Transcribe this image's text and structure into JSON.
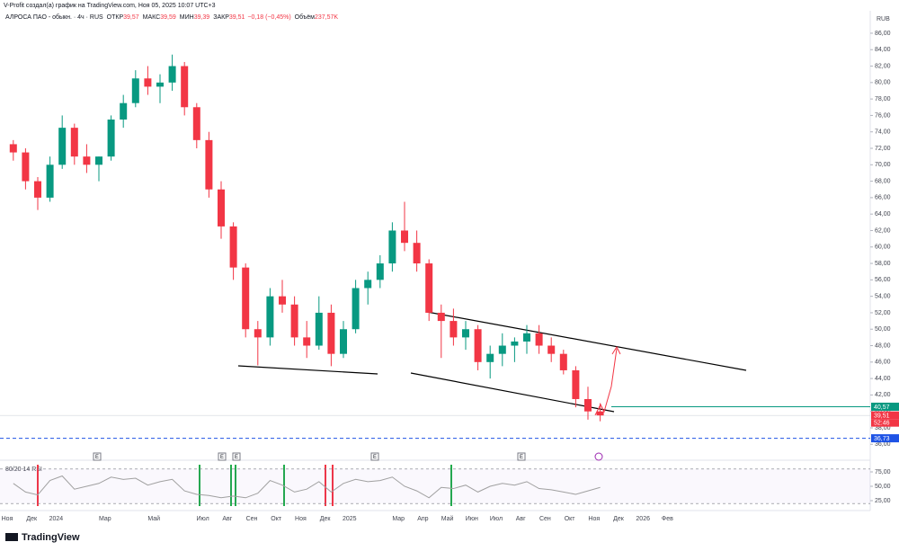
{
  "header": {
    "text": "V-Profit создал(а) график на TradingView.com, Ноя 05, 2025 10:07 UTC+3"
  },
  "footer": {
    "logo": "TradingView"
  },
  "chart_data": {
    "type": "candlestick",
    "legend": {
      "symbol": "АЛРОСА ПАО - обыкн. · 4ч · RUS",
      "open_label": "ОТКР",
      "open": "39,57",
      "high_label": "МАКС",
      "high": "39,59",
      "low_label": "МИН",
      "low": "39,39",
      "close_label": "ЗАКР",
      "close": "39,51",
      "change": "−0,18 (−0,45%)",
      "volume_label": "Объём",
      "volume": "237,57K"
    },
    "currency": "RUB",
    "categories": [
      "Ноя",
      null,
      "Дек",
      null,
      "2024",
      null,
      null,
      null,
      "Мар",
      null,
      null,
      null,
      "Май",
      null,
      null,
      null,
      "Июл",
      null,
      "Авг",
      null,
      "Сен",
      null,
      "Окт",
      null,
      "Ноя",
      null,
      "Дек",
      null,
      "2025",
      null,
      null,
      null,
      "Мар",
      null,
      "Апр",
      null,
      "Май",
      null,
      "Июн",
      null,
      "Июл",
      null,
      "Авг",
      null,
      "Сен",
      null,
      "Окт",
      null,
      "Ноя",
      null,
      "Дек",
      null,
      "2026",
      null,
      "Фев",
      null
    ],
    "open": [
      72.5,
      71.5,
      68,
      66,
      70,
      74.5,
      71,
      70,
      71,
      75.5,
      77.5,
      80.5,
      79.5,
      80,
      82,
      77,
      73,
      67,
      62.5,
      57.5,
      50,
      49,
      54,
      53,
      49,
      48,
      52,
      47,
      50,
      55,
      56,
      58,
      62,
      60.5,
      58,
      52,
      51,
      49,
      50,
      46,
      47,
      48,
      48.5,
      49.5,
      48,
      47,
      45,
      41.5,
      40,
      null,
      null,
      null,
      null,
      null,
      null,
      null
    ],
    "high": [
      73,
      72,
      68.5,
      71,
      76,
      75,
      72.5,
      71,
      76,
      78.5,
      81.5,
      82,
      81,
      83.4,
      82.5,
      77.5,
      74,
      68,
      63,
      58,
      51,
      55,
      56,
      54,
      51,
      54,
      53,
      51,
      56,
      57,
      59,
      63,
      65.5,
      62,
      58.5,
      53,
      52.5,
      51,
      50.5,
      48,
      49.5,
      49,
      50.5,
      50.5,
      49,
      47.5,
      45.5,
      43,
      41,
      null,
      null,
      null,
      null,
      null,
      null,
      null
    ],
    "low": [
      70.5,
      67,
      64.5,
      65.5,
      69.5,
      70,
      69,
      68,
      70.5,
      74.5,
      77,
      78.5,
      77.5,
      79,
      76,
      72,
      66,
      61,
      56,
      49,
      45.6,
      48,
      52,
      48,
      46.5,
      47.5,
      45.5,
      46.5,
      49.5,
      53,
      55,
      57,
      59.5,
      57,
      51,
      46.5,
      48,
      47.5,
      45,
      44,
      45.5,
      46,
      47,
      47,
      46,
      44.5,
      40.5,
      39,
      38.8,
      null,
      null,
      null,
      null,
      null,
      null,
      null
    ],
    "close": [
      71.5,
      68,
      66,
      70,
      74.5,
      71,
      70,
      71,
      75.5,
      77.5,
      80.5,
      79.5,
      80,
      82,
      77,
      73,
      67,
      62.5,
      57.5,
      50,
      49,
      54,
      53,
      49,
      48,
      52,
      47,
      50,
      55,
      56,
      58,
      62,
      60.5,
      58,
      52,
      51,
      49,
      50,
      46,
      47,
      48,
      48.5,
      49.5,
      48,
      47,
      45,
      41.5,
      40,
      39.51,
      null,
      null,
      null,
      null,
      null,
      null,
      null
    ],
    "up_color": "#089981",
    "down_color": "#f23645",
    "ylim": [
      34.5,
      88.4
    ],
    "yticks": [
      {
        "value": 36,
        "label": "36,00"
      },
      {
        "value": 38,
        "label": "38,00"
      },
      {
        "value": 40,
        "label": "40,00"
      },
      {
        "value": 42,
        "label": "42,00"
      },
      {
        "value": 44,
        "label": "44,00"
      },
      {
        "value": 46,
        "label": "46,00"
      },
      {
        "value": 48,
        "label": "48,00"
      },
      {
        "value": 50,
        "label": "50,00"
      },
      {
        "value": 52,
        "label": "52,00"
      },
      {
        "value": 54,
        "label": "54,00"
      },
      {
        "value": 56,
        "label": "56,00"
      },
      {
        "value": 58,
        "label": "58,00"
      },
      {
        "value": 60,
        "label": "60,00"
      },
      {
        "value": 62,
        "label": "62,00"
      },
      {
        "value": 64,
        "label": "64,00"
      },
      {
        "value": 66,
        "label": "66,00"
      },
      {
        "value": 68,
        "label": "68,00"
      },
      {
        "value": 70,
        "label": "70,00"
      },
      {
        "value": 72,
        "label": "72,00"
      },
      {
        "value": 74,
        "label": "74,00"
      },
      {
        "value": 76,
        "label": "76,00"
      },
      {
        "value": 78,
        "label": "78,00"
      },
      {
        "value": 80,
        "label": "80,00"
      },
      {
        "value": 82,
        "label": "82,00"
      },
      {
        "value": 84,
        "label": "84,00"
      },
      {
        "value": 86,
        "label": "86,00"
      }
    ],
    "levels": [
      {
        "value": 40.57,
        "label": "40,57",
        "color": "#089981"
      },
      {
        "value": 39.51,
        "label": "39,51",
        "color": "#f23645"
      },
      {
        "value": 36.73,
        "label": "36,73",
        "color": "#1e53e5"
      }
    ],
    "countdown": "52:46",
    "event_label": "E",
    "rsi": {
      "label": "80/20 14 RSI",
      "color": "#a0a0a0",
      "values": [
        55,
        40,
        35,
        60,
        68,
        45,
        50,
        55,
        66,
        62,
        64,
        52,
        58,
        62,
        42,
        36,
        34,
        30,
        33,
        30,
        38,
        60,
        52,
        40,
        45,
        58,
        40,
        55,
        62,
        58,
        60,
        66,
        50,
        42,
        30,
        48,
        46,
        52,
        40,
        50,
        55,
        52,
        58,
        46,
        44,
        40,
        36,
        42,
        48,
        null,
        null,
        null,
        null,
        null,
        null,
        null
      ],
      "ylim": [
        15.6,
        87.5
      ],
      "yticks": [
        {
          "value": 75,
          "label": "75,00"
        },
        {
          "value": 50,
          "label": "50,00"
        },
        {
          "value": 25,
          "label": "25,00"
        }
      ],
      "bands": [
        80,
        20
      ]
    }
  }
}
